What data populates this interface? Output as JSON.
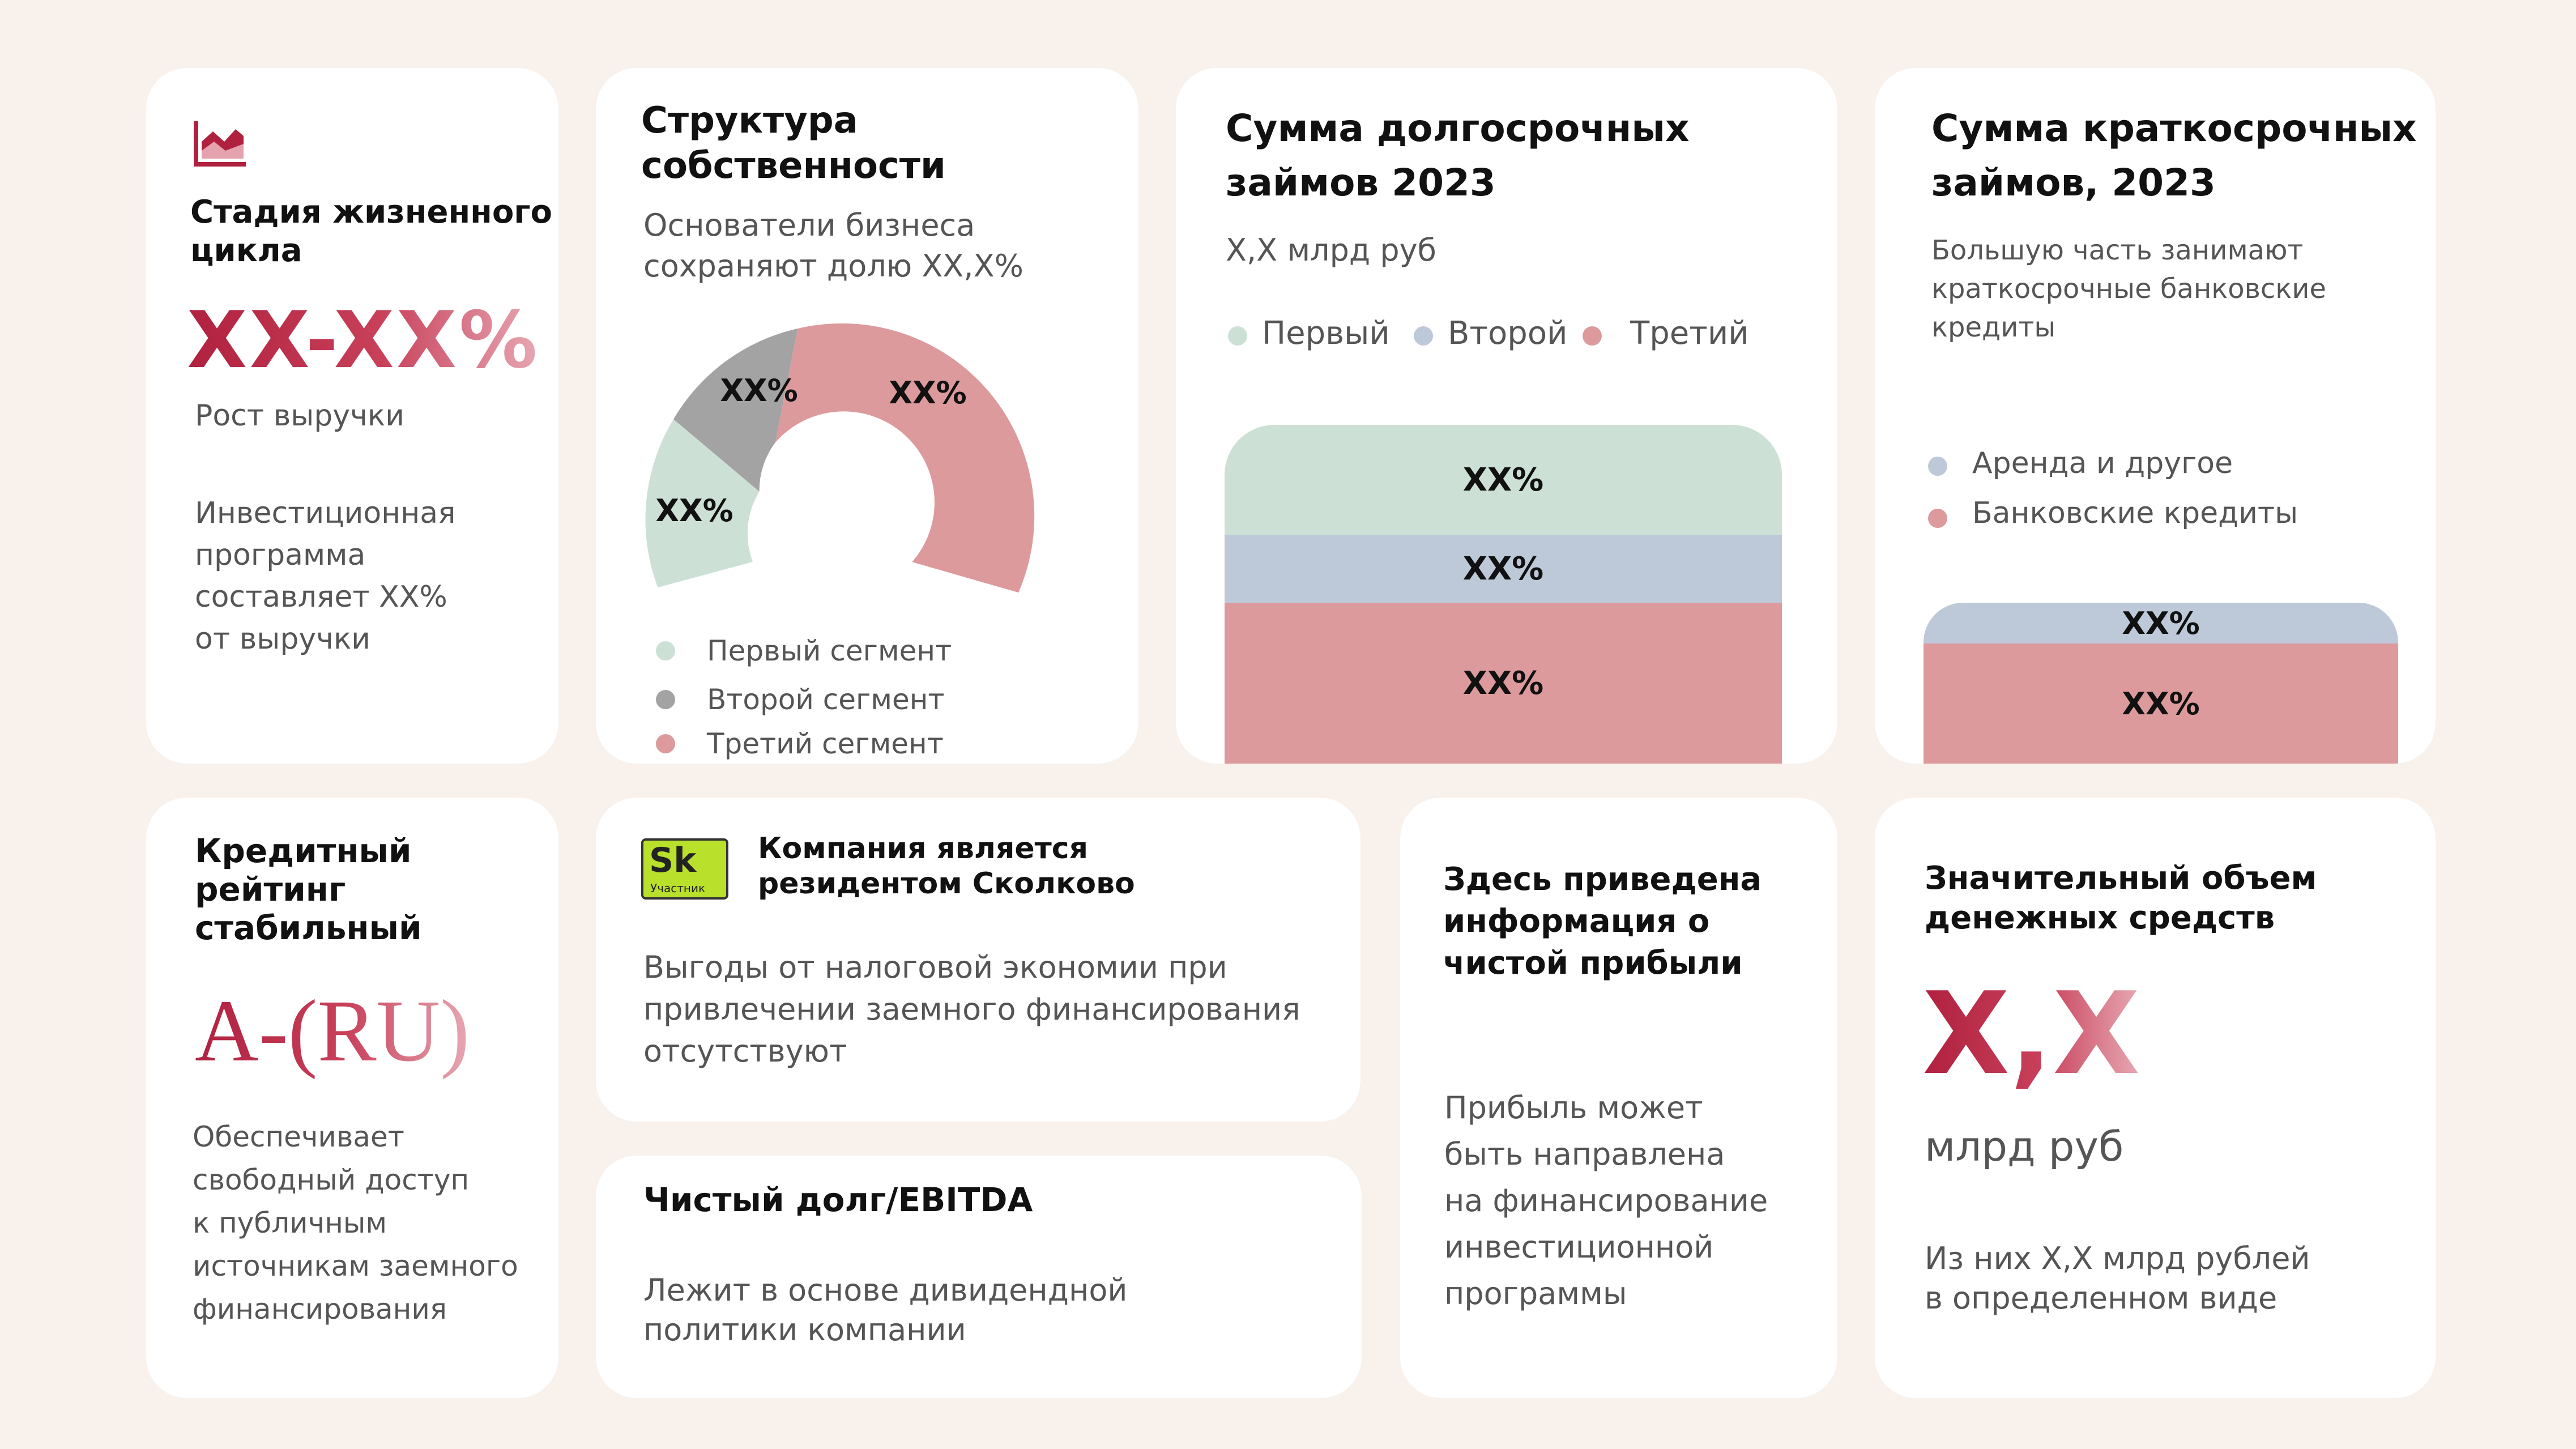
{
  "colors": {
    "first": "#cde0d6",
    "second": "#a3a3a3",
    "third": "#dc9a9d",
    "lavender": "#bdc9d8",
    "accent": "#b0213f"
  },
  "lifecycle": {
    "icon": "chart-area-icon",
    "title_l1": "Стадия жизненного",
    "title_l2": "цикла",
    "big_value": "XX-XX%",
    "subtitle": "Рост выручки",
    "body_l1": "Инвестиционная",
    "body_l2": "программа",
    "body_l3": "составляет  XX%",
    "body_l4": "от выручки"
  },
  "ownership": {
    "title_l1": "Структура",
    "title_l2": "собственности",
    "subtitle_l1": "Основатели бизнеса",
    "subtitle_l2": "сохраняют долю XX,X%",
    "labels": [
      "XX%",
      "XX%",
      "XX%"
    ],
    "legend": [
      "Первый сегмент",
      "Второй сегмент",
      "Третий сегмент"
    ]
  },
  "longterm": {
    "title_l1": "Сумма долгосрочных",
    "title_l2": "займов 2023",
    "subtitle": "X,X млрд руб",
    "legend": [
      "Первый",
      "Второй",
      "Третий"
    ],
    "bars": [
      "XX%",
      "XX%",
      "XX%"
    ]
  },
  "shortterm": {
    "title_l1": "Сумма краткосрочных",
    "title_l2": "займов, 2023",
    "desc_l1": "Большую часть занимают",
    "desc_l2": "краткосрочные банковские",
    "desc_l3": "кредиты",
    "legend": [
      "Аренда и другое",
      "Банковские кредиты"
    ],
    "bars": [
      "XX%",
      "XX%"
    ]
  },
  "rating": {
    "title_l1": "Кредитный",
    "title_l2": "рейтинг",
    "title_l3": "стабильный",
    "value": "A-(RU)",
    "body_l1": "Обеспечивает",
    "body_l2": "свободный доступ",
    "body_l3": "к публичным",
    "body_l4": "источникам заемного",
    "body_l5": "финансирования"
  },
  "skolkovo": {
    "logo_big": "Sk",
    "logo_small": "Участник",
    "title_l1": "Компания является",
    "title_l2": "резидентом Сколково",
    "body_l1": "Выгоды от налоговой экономии при",
    "body_l2": "привлечении заемного финансирования",
    "body_l3": "отсутствуют"
  },
  "netdebt": {
    "title": "Чистый долг/EBITDA",
    "body_l1": "Лежит в основе дивидендной",
    "body_l2": "политики компании"
  },
  "profit": {
    "title_l1": "Здесь приведена",
    "title_l2": "информация о",
    "title_l3": "чистой прибыли",
    "body_l1": "Прибыль может",
    "body_l2": "быть направлена",
    "body_l3": "на финансирование",
    "body_l4": "инвестиционной",
    "body_l5": "программы"
  },
  "cash": {
    "title_l1": "Значительный объем",
    "title_l2": "денежных средств",
    "big_value": "X,X",
    "unit": "млрд руб",
    "body_l1": "Из них X,X млрд рублей",
    "body_l2": "в определенном виде"
  }
}
